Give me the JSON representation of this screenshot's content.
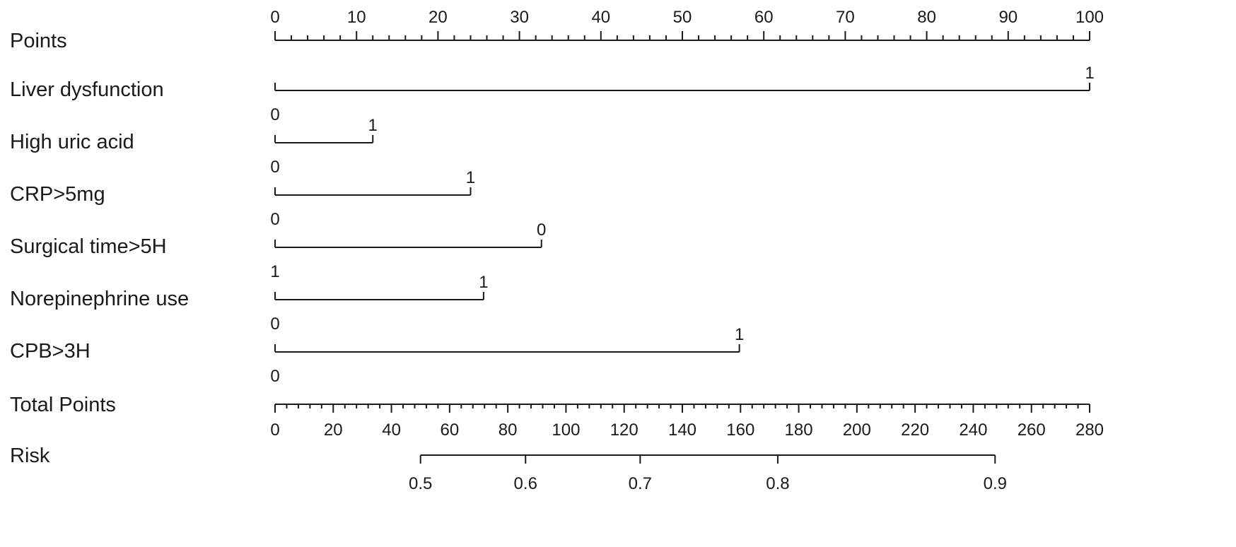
{
  "chart_data": {
    "type": "nomogram",
    "points_scale": {
      "label": "Points",
      "min": 0,
      "max": 100,
      "major_step": 10,
      "minor_step": 2,
      "tick_labels": [
        "0",
        "10",
        "20",
        "30",
        "40",
        "50",
        "60",
        "70",
        "80",
        "90",
        "100"
      ]
    },
    "variables": [
      {
        "name": "Liver dysfunction",
        "levels": [
          {
            "label": "0",
            "points": 0
          },
          {
            "label": "1",
            "points": 100
          }
        ]
      },
      {
        "name": "High uric acid",
        "levels": [
          {
            "label": "0",
            "points": 0
          },
          {
            "label": "1",
            "points": 12
          }
        ]
      },
      {
        "name": "CRP>5mg",
        "levels": [
          {
            "label": "0",
            "points": 0
          },
          {
            "label": "1",
            "points": 24
          }
        ]
      },
      {
        "name": "Surgical time>5H",
        "levels": [
          {
            "label": "1",
            "points": 0
          },
          {
            "label": "0",
            "points": 32.7
          }
        ]
      },
      {
        "name": "Norepinephrine use",
        "levels": [
          {
            "label": "0",
            "points": 0
          },
          {
            "label": "1",
            "points": 25.6
          }
        ]
      },
      {
        "name": "CPB>3H",
        "levels": [
          {
            "label": "0",
            "points": 0
          },
          {
            "label": "1",
            "points": 57
          }
        ]
      }
    ],
    "total_points_scale": {
      "label": "Total Points",
      "min": 0,
      "max": 280,
      "major_step": 20,
      "minor_step": 4,
      "tick_labels": [
        "0",
        "20",
        "40",
        "60",
        "80",
        "100",
        "120",
        "140",
        "160",
        "180",
        "200",
        "220",
        "240",
        "260",
        "280"
      ]
    },
    "risk_scale": {
      "label": "Risk",
      "range_total_points": [
        50,
        247.5
      ],
      "ticks": [
        {
          "label": "0.5",
          "total_points": 50
        },
        {
          "label": "0.6",
          "total_points": 86.1
        },
        {
          "label": "0.7",
          "total_points": 125.5
        },
        {
          "label": "0.8",
          "total_points": 172.8
        },
        {
          "label": "0.9",
          "total_points": 247.5
        }
      ]
    }
  }
}
